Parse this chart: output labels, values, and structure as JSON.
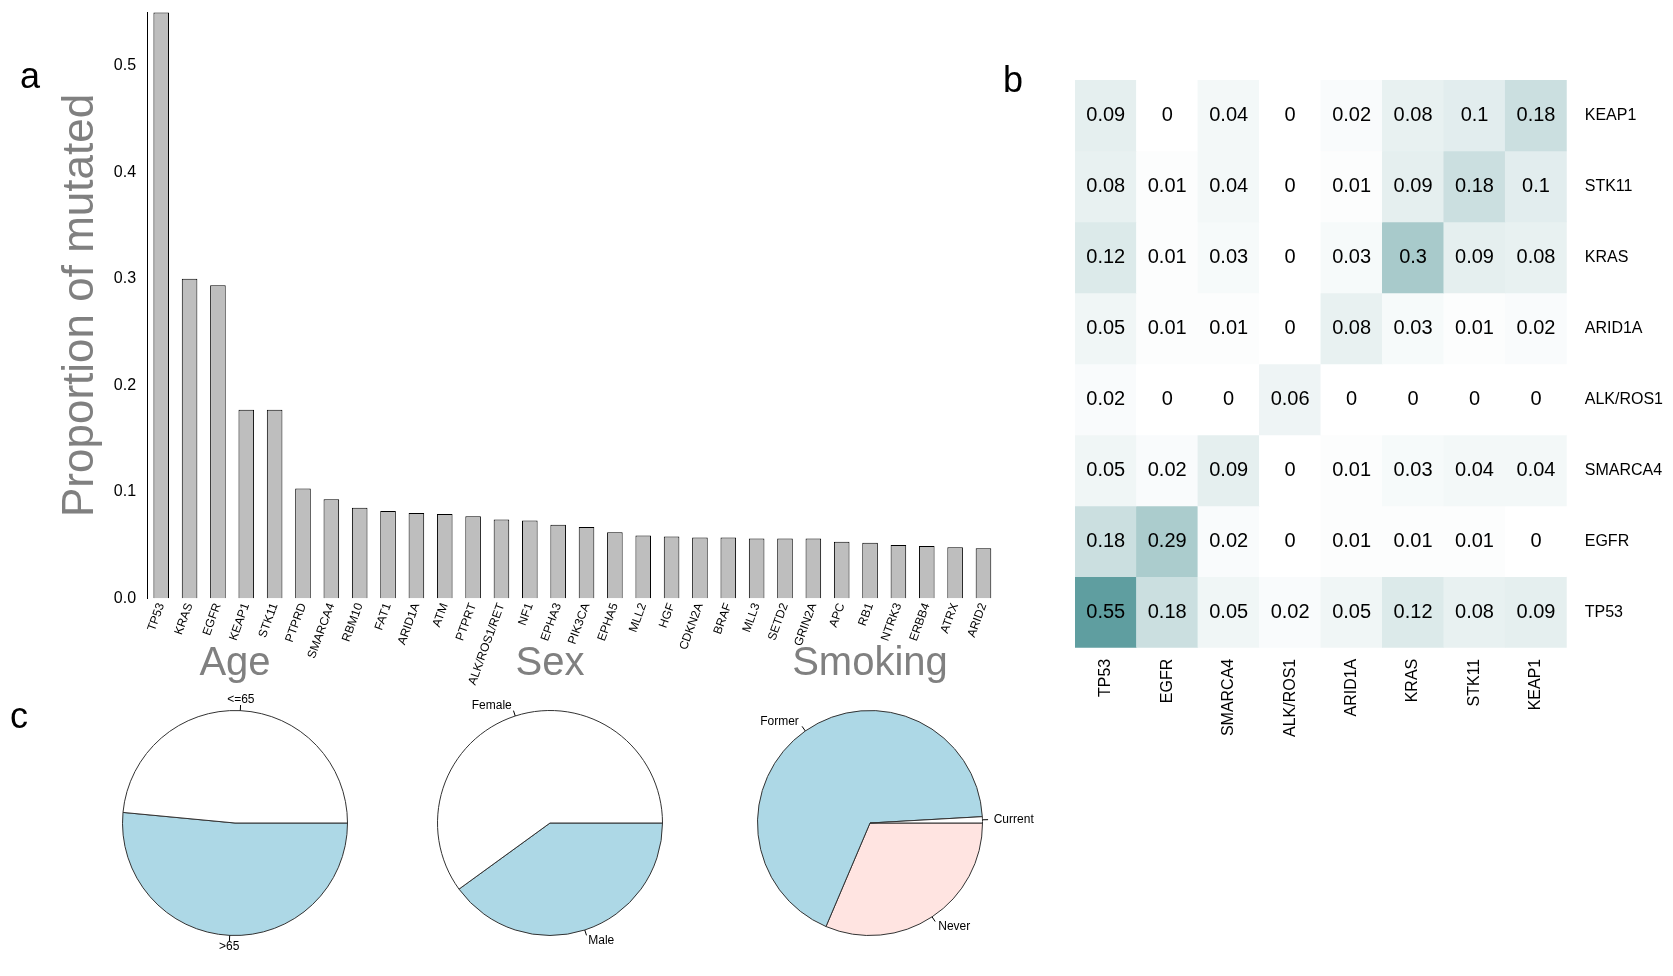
{
  "chart_data": [
    {
      "type": "bar",
      "ylabel": "Proportion of mutated",
      "annotations": [
        "a"
      ],
      "color": "#bebebe",
      "grid": false,
      "categories": [
        "TP53",
        "KRAS",
        "EGFR",
        "KEAP1",
        "STK11",
        "PTPRD",
        "SMARCA4",
        "RBM10",
        "FAT1",
        "ARID1A",
        "ATM",
        "PTPRT",
        "ALK/ROS1/RET",
        "NF1",
        "EPHA3",
        "PIK3CA",
        "EPHA5",
        "MLL2",
        "HGF",
        "CDKN2A",
        "BRAF",
        "MLL3",
        "SETD2",
        "GRIN2A",
        "APC",
        "RB1",
        "NTRK3",
        "ERBB4",
        "ATRX",
        "ARID2"
      ],
      "values": [
        0.55,
        0.3,
        0.294,
        0.177,
        0.177,
        0.103,
        0.093,
        0.085,
        0.082,
        0.08,
        0.079,
        0.077,
        0.074,
        0.073,
        0.069,
        0.067,
        0.062,
        0.059,
        0.058,
        0.057,
        0.057,
        0.056,
        0.056,
        0.056,
        0.053,
        0.052,
        0.05,
        0.049,
        0.048,
        0.047
      ],
      "ylim": [
        0,
        0.55
      ],
      "yticks": [
        {
          "value": 0,
          "label": "0.0"
        },
        0.1,
        0.2,
        0.3,
        0.4,
        0.5
      ]
    },
    {
      "type": "heatmap",
      "annotations": [
        "b"
      ],
      "color": "#5f9ea0",
      "categories": [
        "TP53",
        "EGFR",
        "SMARCA4",
        "ALK/ROS1",
        "ARID1A",
        "KRAS",
        "STK11",
        "KEAP1"
      ],
      "y_categories": [
        "KEAP1",
        "STK11",
        "KRAS",
        "ARID1A",
        "ALK/ROS1",
        "SMARCA4",
        "EGFR",
        "TP53"
      ],
      "cells": [
        [
          0.09,
          0,
          0.04,
          0,
          0.02,
          0.08,
          0.1,
          0.18
        ],
        [
          0.08,
          0.01,
          0.04,
          0,
          0.01,
          0.09,
          0.18,
          0.1
        ],
        [
          0.12,
          0.01,
          0.03,
          0,
          0.03,
          0.3,
          0.09,
          0.08
        ],
        [
          0.05,
          0.01,
          0.01,
          0,
          0.08,
          0.03,
          0.01,
          0.02
        ],
        [
          0.02,
          0,
          0,
          0.06,
          0,
          0,
          0,
          0
        ],
        [
          0.05,
          0.02,
          0.09,
          0,
          0.01,
          0.03,
          0.04,
          0.04
        ],
        [
          0.18,
          0.29,
          0.02,
          0,
          0.01,
          0.01,
          0.01,
          0
        ],
        [
          0.55,
          0.18,
          0.05,
          0.02,
          0.05,
          0.12,
          0.08,
          0.09
        ]
      ],
      "data_labels": true
    },
    {
      "type": "pie",
      "title": "Age",
      "annotations": [
        "c"
      ],
      "categories": [
        "<=65",
        ">65"
      ],
      "values": [
        48.5,
        51.5
      ],
      "colors": [
        "#ffffff",
        "#add8e6"
      ]
    },
    {
      "type": "pie",
      "title": "Sex",
      "categories": [
        "Female",
        "Male"
      ],
      "values": [
        60,
        40
      ],
      "colors": [
        "#ffffff",
        "#add8e6"
      ]
    },
    {
      "type": "pie",
      "title": "Smoking",
      "categories": [
        "Current",
        "Former",
        "Never"
      ],
      "values": [
        0.9,
        67.7,
        31.4
      ],
      "colors": [
        "#ffffff",
        "#add8e6",
        "#ffe4e1"
      ]
    }
  ]
}
